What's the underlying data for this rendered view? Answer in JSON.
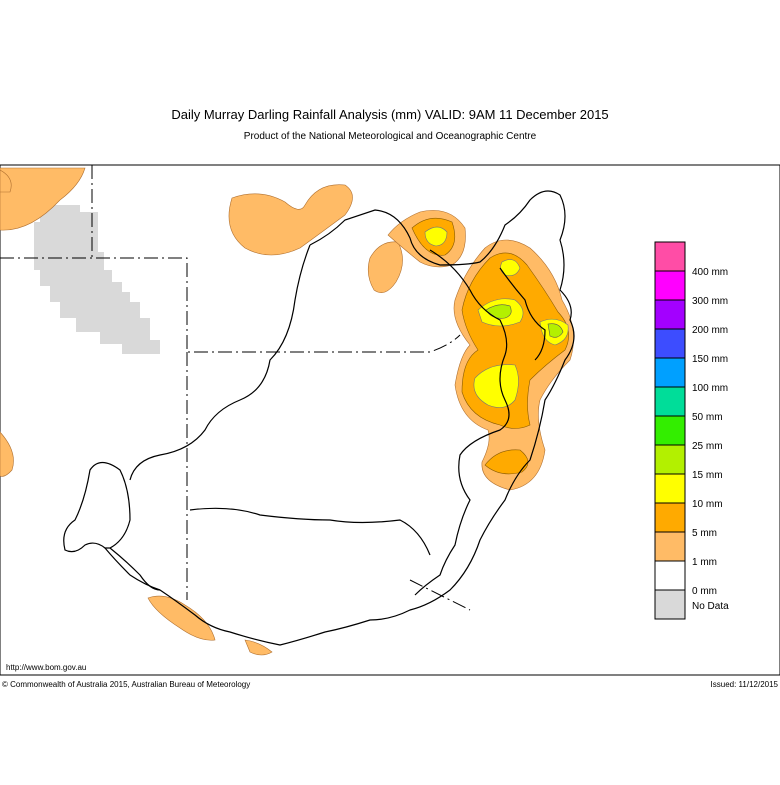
{
  "header": {
    "title": "Daily Murray Darling Rainfall Analysis (mm)  VALID: 9AM 11 December 2015",
    "subtitle": "Product of the National Meteorological and Oceanographic Centre"
  },
  "legend": [
    {
      "label": "400 mm",
      "color": "#ff4da6"
    },
    {
      "label": "300 mm",
      "color": "#ff00ff"
    },
    {
      "label": "200 mm",
      "color": "#a300ff"
    },
    {
      "label": "150 mm",
      "color": "#3d4dff"
    },
    {
      "label": "100 mm",
      "color": "#00a0ff"
    },
    {
      "label": "50 mm",
      "color": "#00dd99"
    },
    {
      "label": "25 mm",
      "color": "#33ee00"
    },
    {
      "label": "15 mm",
      "color": "#b3f000"
    },
    {
      "label": "10 mm",
      "color": "#ffff00"
    },
    {
      "label": "5 mm",
      "color": "#ffaa00"
    },
    {
      "label": "1 mm",
      "color": "#ffbb66"
    },
    {
      "label": "0 mm",
      "color": "#ffffff"
    },
    {
      "label": "No Data",
      "color": "#d9d9d9"
    }
  ],
  "footer": {
    "url": "http://www.bom.gov.au",
    "copyright": "© Commonwealth of Australia 2015, Australian Bureau of Meteorology",
    "issued": "Issued: 11/12/2015"
  }
}
